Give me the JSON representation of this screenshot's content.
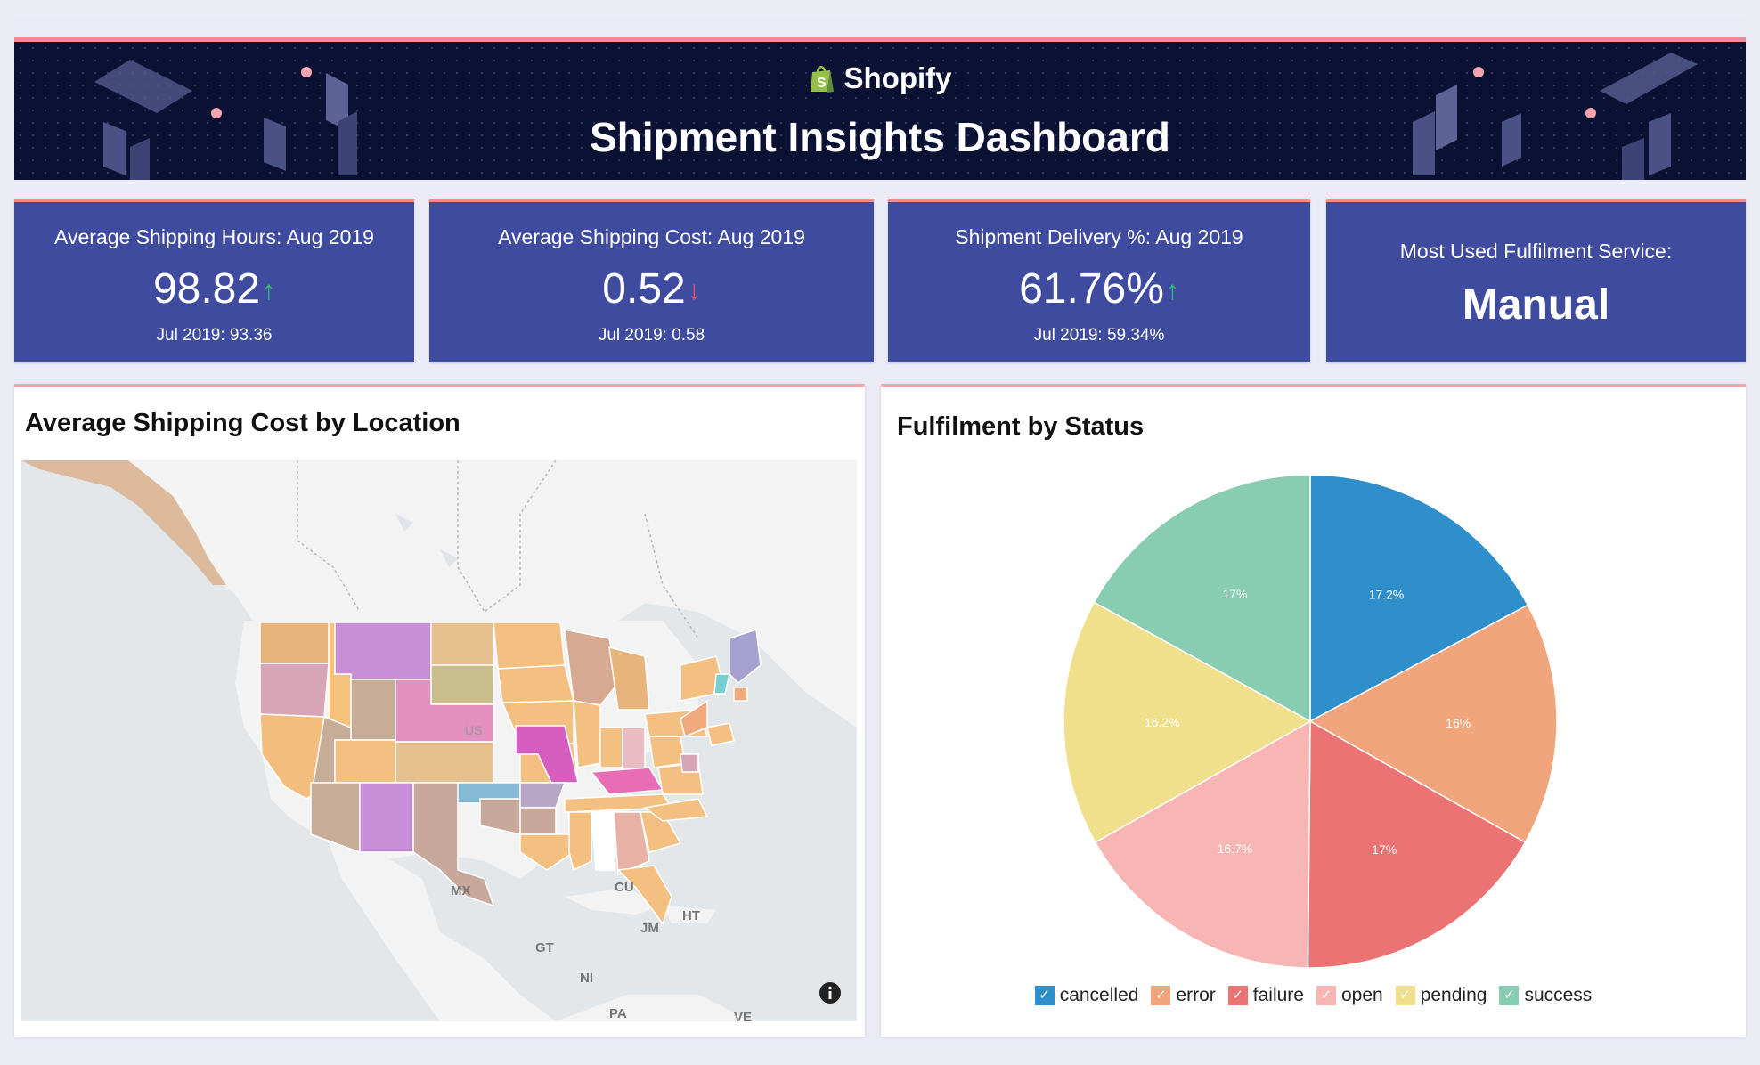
{
  "header": {
    "brand": "Shopify",
    "title": "Shipment Insights Dashboard"
  },
  "kpis": [
    {
      "label": "Average Shipping Hours: Aug 2019",
      "value": "98.82",
      "trend": "up",
      "previous": "Jul 2019: 93.36"
    },
    {
      "label": "Average Shipping Cost: Aug 2019",
      "value": "0.52",
      "trend": "down",
      "previous": "Jul 2019: 0.58"
    },
    {
      "label": "Shipment Delivery %: Aug 2019",
      "value": "61.76%",
      "trend": "up",
      "previous": "Jul 2019: 59.34%"
    },
    {
      "label": "Most Used Fulfilment Service:",
      "value": "Manual"
    }
  ],
  "map_panel": {
    "title": "Average Shipping Cost by Location",
    "labels": {
      "us": "US",
      "mx": "MX",
      "cu": "CU",
      "jm": "JM",
      "ht": "HT",
      "gt": "GT",
      "ni": "NI",
      "pa": "PA",
      "ve": "VE"
    },
    "info_icon": "info-icon"
  },
  "pie_panel": {
    "title": "Fulfilment by Status"
  },
  "chart_data": {
    "type": "pie",
    "title": "Fulfilment by Status",
    "slices": [
      {
        "label": "cancelled",
        "value": 17.2,
        "display": "17.2%",
        "color": "#2f8fca"
      },
      {
        "label": "error",
        "value": 16,
        "display": "16%",
        "color": "#f0a57c"
      },
      {
        "label": "failure",
        "value": 17,
        "display": "17%",
        "color": "#ec7373"
      },
      {
        "label": "open",
        "value": 16.7,
        "display": "16.7%",
        "color": "#f7b5b4"
      },
      {
        "label": "pending",
        "value": 16.2,
        "display": "16.2%",
        "color": "#f1e08b"
      },
      {
        "label": "success",
        "value": 17,
        "display": "17%",
        "color": "#88ccb2"
      }
    ],
    "legend_position": "bottom"
  }
}
